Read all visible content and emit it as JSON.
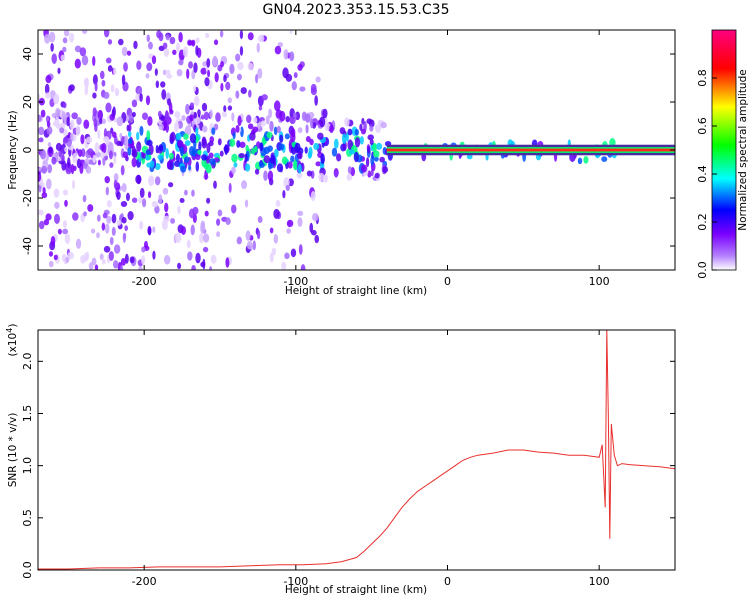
{
  "title": "GN04.2023.353.15.53.C35",
  "colors": {
    "snr_line": "#e8302c",
    "axis": "#000000"
  },
  "chart_data": [
    {
      "type": "heatmap",
      "name": "spectrogram",
      "xlabel": "Height of straight line (km)",
      "ylabel": "Frequency (Hz)",
      "xlim": [
        -270,
        150
      ],
      "ylim": [
        -50,
        50
      ],
      "xticks": [
        -200,
        -100,
        0,
        100
      ],
      "xtick_labels": [
        "-200",
        "-100",
        "0",
        "100"
      ],
      "yticks": [
        -40,
        -20,
        0,
        20,
        40
      ],
      "ytick_labels": [
        "-40",
        "-20",
        "0",
        "20",
        "40"
      ],
      "grid": false,
      "colorbar": {
        "label": "Normalized spectral amplitude",
        "range": [
          0,
          1
        ],
        "ticks": [
          0.0,
          0.2,
          0.4,
          0.6,
          0.8
        ],
        "tick_labels": [
          "0.0",
          "0.2",
          "0.4",
          "0.6",
          "0.8"
        ],
        "colormap": [
          "#ffffff",
          "#7a00ff",
          "#0000ff",
          "#00ffff",
          "#00ff00",
          "#ffff00",
          "#ff0000",
          "#ff0080"
        ]
      }
    },
    {
      "type": "line",
      "name": "snr",
      "xlabel": "Height of straight line (km)",
      "ylabel": "SNR (10 * v/v)",
      "scale_label": "(x10",
      "scale_exp": "4",
      "scale_close": ")",
      "xlim": [
        -270,
        150
      ],
      "ylim": [
        0,
        2.3
      ],
      "xticks": [
        -200,
        -100,
        0,
        100
      ],
      "xtick_labels": [
        "-200",
        "-100",
        "0",
        "100"
      ],
      "yticks": [
        0.0,
        0.5,
        1.0,
        1.5,
        2.0
      ],
      "ytick_labels": [
        "0.0",
        "0.5",
        "1.0",
        "1.5",
        "2.0"
      ],
      "grid": false,
      "x": [
        -270,
        -250,
        -230,
        -210,
        -190,
        -170,
        -150,
        -130,
        -110,
        -95,
        -80,
        -70,
        -60,
        -55,
        -50,
        -45,
        -40,
        -35,
        -30,
        -25,
        -20,
        -15,
        -10,
        -5,
        0,
        5,
        10,
        15,
        20,
        30,
        40,
        50,
        60,
        70,
        80,
        90,
        95,
        100,
        102,
        104,
        105,
        106,
        107,
        108,
        110,
        112,
        115,
        120,
        130,
        140,
        150
      ],
      "y": [
        0.01,
        0.01,
        0.02,
        0.02,
        0.03,
        0.03,
        0.03,
        0.04,
        0.05,
        0.05,
        0.06,
        0.08,
        0.12,
        0.18,
        0.25,
        0.32,
        0.4,
        0.5,
        0.6,
        0.68,
        0.75,
        0.8,
        0.85,
        0.9,
        0.95,
        1.0,
        1.05,
        1.08,
        1.1,
        1.12,
        1.15,
        1.15,
        1.13,
        1.12,
        1.1,
        1.1,
        1.09,
        1.08,
        1.2,
        0.6,
        2.3,
        1.5,
        0.3,
        1.4,
        1.1,
        1.0,
        1.02,
        1.01,
        1.0,
        0.99,
        0.97
      ]
    }
  ]
}
